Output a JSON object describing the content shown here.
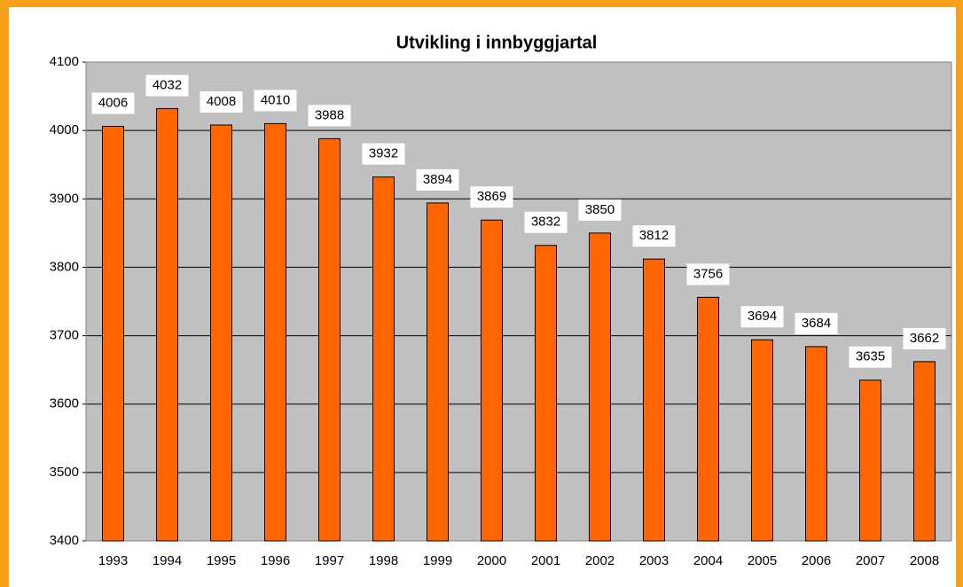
{
  "chart_data": {
    "type": "bar",
    "title": "Utvikling i innbyggjartal",
    "categories": [
      "1993",
      "1994",
      "1995",
      "1996",
      "1997",
      "1998",
      "1999",
      "2000",
      "2001",
      "2002",
      "2003",
      "2004",
      "2005",
      "2006",
      "2007",
      "2008"
    ],
    "values": [
      4006,
      4032,
      4008,
      4010,
      3988,
      3932,
      3894,
      3869,
      3832,
      3850,
      3812,
      3756,
      3694,
      3684,
      3635,
      3662
    ],
    "color": "#ff6600",
    "ylim": [
      3400,
      4100
    ],
    "yticks": [
      3400,
      3500,
      3600,
      3700,
      3800,
      3900,
      4000,
      4100
    ],
    "grid": true
  }
}
